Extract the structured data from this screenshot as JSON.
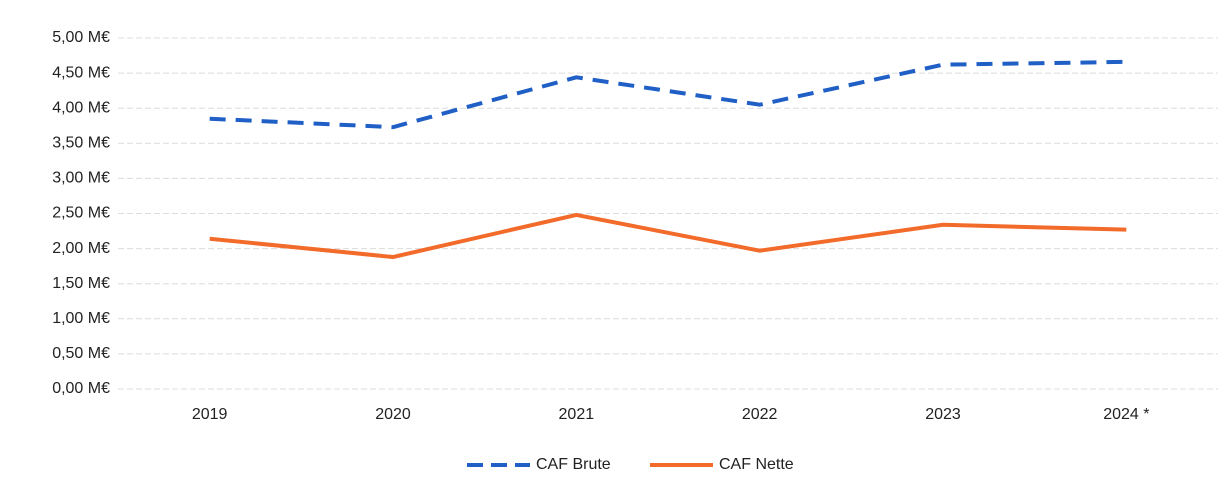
{
  "chart_data": {
    "type": "line",
    "categories": [
      "2019",
      "2020",
      "2021",
      "2022",
      "2023",
      "2024 *"
    ],
    "series": [
      {
        "name": "CAF Brute",
        "color": "#1f5fc6",
        "dashed": true,
        "values": [
          3.85,
          3.73,
          4.44,
          4.05,
          4.62,
          4.66
        ]
      },
      {
        "name": "CAF Nette",
        "color": "#f26b2a",
        "dashed": false,
        "values": [
          2.14,
          1.88,
          2.48,
          1.97,
          2.34,
          2.27
        ]
      }
    ],
    "ylim": [
      0,
      5
    ],
    "yticks": [
      {
        "value": 0,
        "label": "0,00 M€"
      },
      {
        "value": 0.5,
        "label": "0,50 M€"
      },
      {
        "value": 1,
        "label": "1,00 M€"
      },
      {
        "value": 1.5,
        "label": "1,50 M€"
      },
      {
        "value": 2,
        "label": "2,00 M€"
      },
      {
        "value": 2.5,
        "label": "2,50 M€"
      },
      {
        "value": 3,
        "label": "3,00 M€"
      },
      {
        "value": 3.5,
        "label": "3,50 M€"
      },
      {
        "value": 4,
        "label": "4,00 M€"
      },
      {
        "value": 4.5,
        "label": "4,50 M€"
      },
      {
        "value": 5,
        "label": "5,00 M€"
      }
    ],
    "grid": true,
    "legend": "bottom"
  }
}
